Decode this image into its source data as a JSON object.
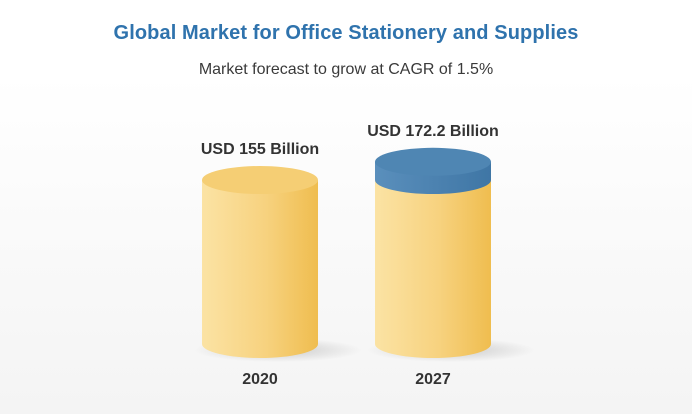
{
  "title": "Global Market for Office Stationery and Supplies",
  "subtitle": "Market forecast to grow at CAGR of 1.5%",
  "colors": {
    "title": "#2f73ad",
    "cylinder_body_light": "#fbe3a4",
    "cylinder_body_dark": "#efbd4f",
    "cylinder_top": "#f5ce74",
    "growth_cap": "#4f86b3",
    "text": "#333333"
  },
  "chart_data": {
    "type": "bar",
    "categories": [
      "2020",
      "2027"
    ],
    "values": [
      155,
      172.2
    ],
    "data_labels": [
      "USD 155 Billion",
      "USD 172.2 Billion"
    ],
    "units": "USD Billion",
    "ylim": [
      0,
      172.2
    ],
    "grid": false,
    "legend": "none"
  }
}
